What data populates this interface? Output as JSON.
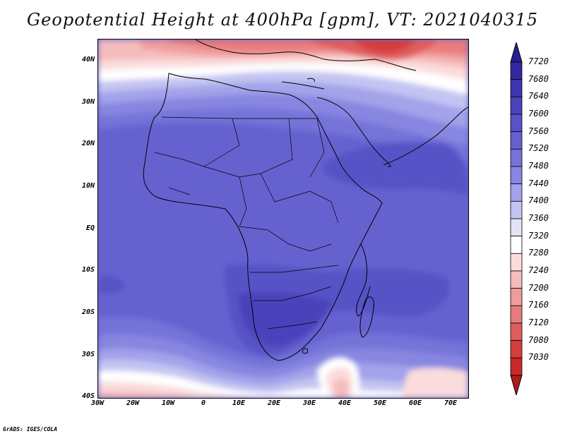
{
  "title": "Geopotential Height at 400hPa [gpm], VT: 2021040315",
  "credit": "GrADS: IGES/COLA",
  "map": {
    "lat_ticks": [
      "40N",
      "30N",
      "20N",
      "10N",
      "EQ",
      "10S",
      "20S",
      "30S",
      "40S"
    ],
    "lon_ticks": [
      "30W",
      "20W",
      "10W",
      "0",
      "10E",
      "20E",
      "30E",
      "40E",
      "50E",
      "60E",
      "70E"
    ],
    "lat_range": [
      -40,
      44
    ],
    "lon_range": [
      -30,
      75
    ],
    "variable": "geopotential height",
    "level": "400hPa",
    "units": "gpm",
    "valid_time": "2021040315"
  },
  "colorbar": {
    "labels": [
      "7720",
      "7680",
      "7640",
      "7600",
      "7560",
      "7520",
      "7480",
      "7440",
      "7400",
      "7360",
      "7320",
      "7280",
      "7240",
      "7200",
      "7160",
      "7120",
      "7080",
      "7030"
    ],
    "colors": [
      "#2a1e92",
      "#33289f",
      "#3e35ad",
      "#4a43bb",
      "#5752c6",
      "#6562d0",
      "#7473d8",
      "#8786e0",
      "#a3a3ea",
      "#c4c4f2",
      "#e3e3f8",
      "#ffffff",
      "#fbdcdc",
      "#f5bcbc",
      "#ef9c9c",
      "#e87c7c",
      "#e05d5d",
      "#d63e3e",
      "#c82a2a",
      "#b21a1a"
    ]
  }
}
